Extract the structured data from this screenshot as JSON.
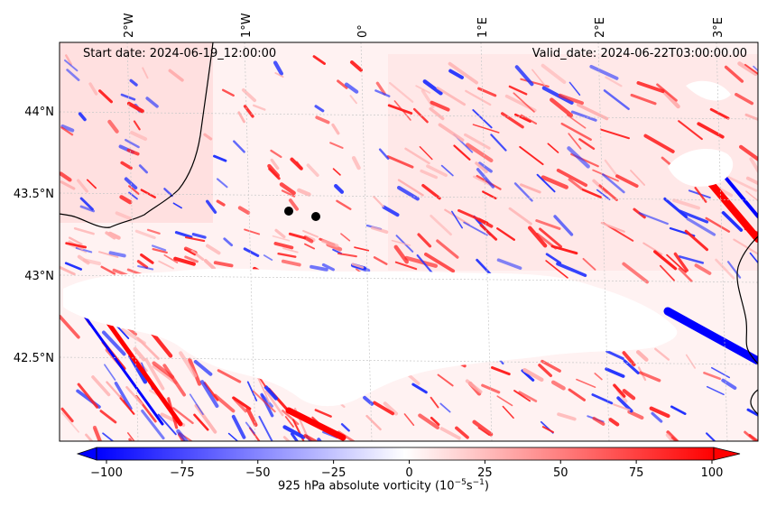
{
  "header": {
    "start_date": "Start date: 2024-06-19_12:00:00",
    "valid_date": "Valid_date: 2024-06-22T03:00:00.00"
  },
  "map": {
    "region": "Gulf of Lion / western Mediterranean",
    "lon_labels": [
      "2°W",
      "1°W",
      "0°",
      "1°E",
      "2°E",
      "3°E"
    ],
    "lat_labels": [
      "44°N",
      "43.5°N",
      "43°N",
      "42.5°N"
    ],
    "markers": [
      {
        "name": "point-a",
        "lon": -0.62,
        "lat": 43.39
      },
      {
        "name": "point-b",
        "lon": -0.39,
        "lat": 43.36
      }
    ]
  },
  "colorbar": {
    "label": "925 hPa absolute vorticity (10",
    "label_exp": "−5",
    "label_unit": "s",
    "label_unit_exp": "−1",
    "label_close": ")",
    "ticks": [
      "−100",
      "−75",
      "−50",
      "−25",
      "0",
      "25",
      "50",
      "75",
      "100"
    ],
    "min": -100,
    "max": 100,
    "colors": {
      "low": "#0000ff",
      "mid": "#ffffff",
      "high": "#ff0000"
    }
  },
  "colors": {
    "coast": "#000000",
    "grid": "#c8c8c8",
    "masked": "#ffffff"
  }
}
